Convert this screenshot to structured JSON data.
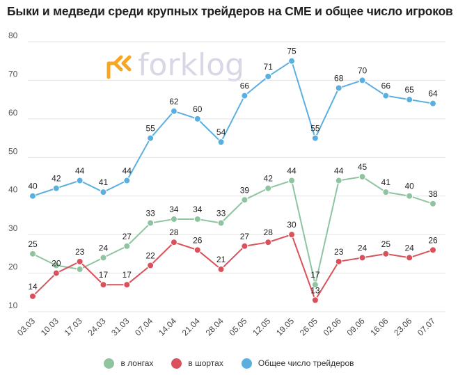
{
  "title": "Быки и медведи среди крупных трейдеров на CME и общее число игроков",
  "logo": {
    "text": "forklog",
    "icon": "forklog-arrows-icon",
    "icon_color": "#f5a623",
    "text_color": "#d7d7e6"
  },
  "colors": {
    "long": "#8fc4a0",
    "short": "#d9515a",
    "total": "#5bafe0",
    "grid": "#e3e3e3"
  },
  "chart_data": {
    "type": "line",
    "title": "Быки и медведи среди крупных трейдеров на CME и общее число игроков",
    "xlabel": "",
    "ylabel": "",
    "categories": [
      "03.03",
      "10.03",
      "17.03",
      "24.03",
      "31.03",
      "07.04",
      "14.04",
      "21.04",
      "28.04",
      "05.05",
      "12.05",
      "19.05",
      "26.05",
      "02.06",
      "09.06",
      "16.06",
      "23.06",
      "07.07"
    ],
    "ylim": [
      10,
      80
    ],
    "yticks": [
      10,
      20,
      30,
      40,
      50,
      60,
      70,
      80
    ],
    "grid": true,
    "legend_position": "bottom",
    "series": [
      {
        "name": "в лонгах",
        "color": "#8fc4a0",
        "values": [
          25,
          22,
          21,
          24,
          27,
          33,
          34,
          34,
          33,
          39,
          42,
          44,
          17,
          44,
          45,
          41,
          40,
          38
        ],
        "labels": [
          "25",
          "",
          "",
          "24",
          "27",
          "33",
          "34",
          "34",
          "33",
          "39",
          "42",
          "44",
          "17",
          "44",
          "45",
          "41",
          "40",
          "38"
        ]
      },
      {
        "name": "в шортах",
        "color": "#d9515a",
        "values": [
          14,
          20,
          23,
          17,
          17,
          22,
          28,
          26,
          21,
          27,
          28,
          30,
          13,
          23,
          24,
          25,
          24,
          26
        ],
        "labels": [
          "14",
          "20",
          "23",
          "17",
          "17",
          "22",
          "28",
          "26",
          "21",
          "27",
          "28",
          "30",
          "13",
          "23",
          "24",
          "25",
          "24",
          "26"
        ]
      },
      {
        "name": "Общее число трейдеров",
        "color": "#5bafe0",
        "values": [
          40,
          42,
          44,
          41,
          44,
          55,
          62,
          60,
          54,
          66,
          71,
          75,
          55,
          68,
          70,
          66,
          65,
          64
        ],
        "labels": [
          "40",
          "42",
          "44",
          "41",
          "44",
          "55",
          "62",
          "60",
          "54",
          "66",
          "71",
          "75",
          "55",
          "68",
          "70",
          "66",
          "65",
          "64"
        ]
      }
    ]
  }
}
